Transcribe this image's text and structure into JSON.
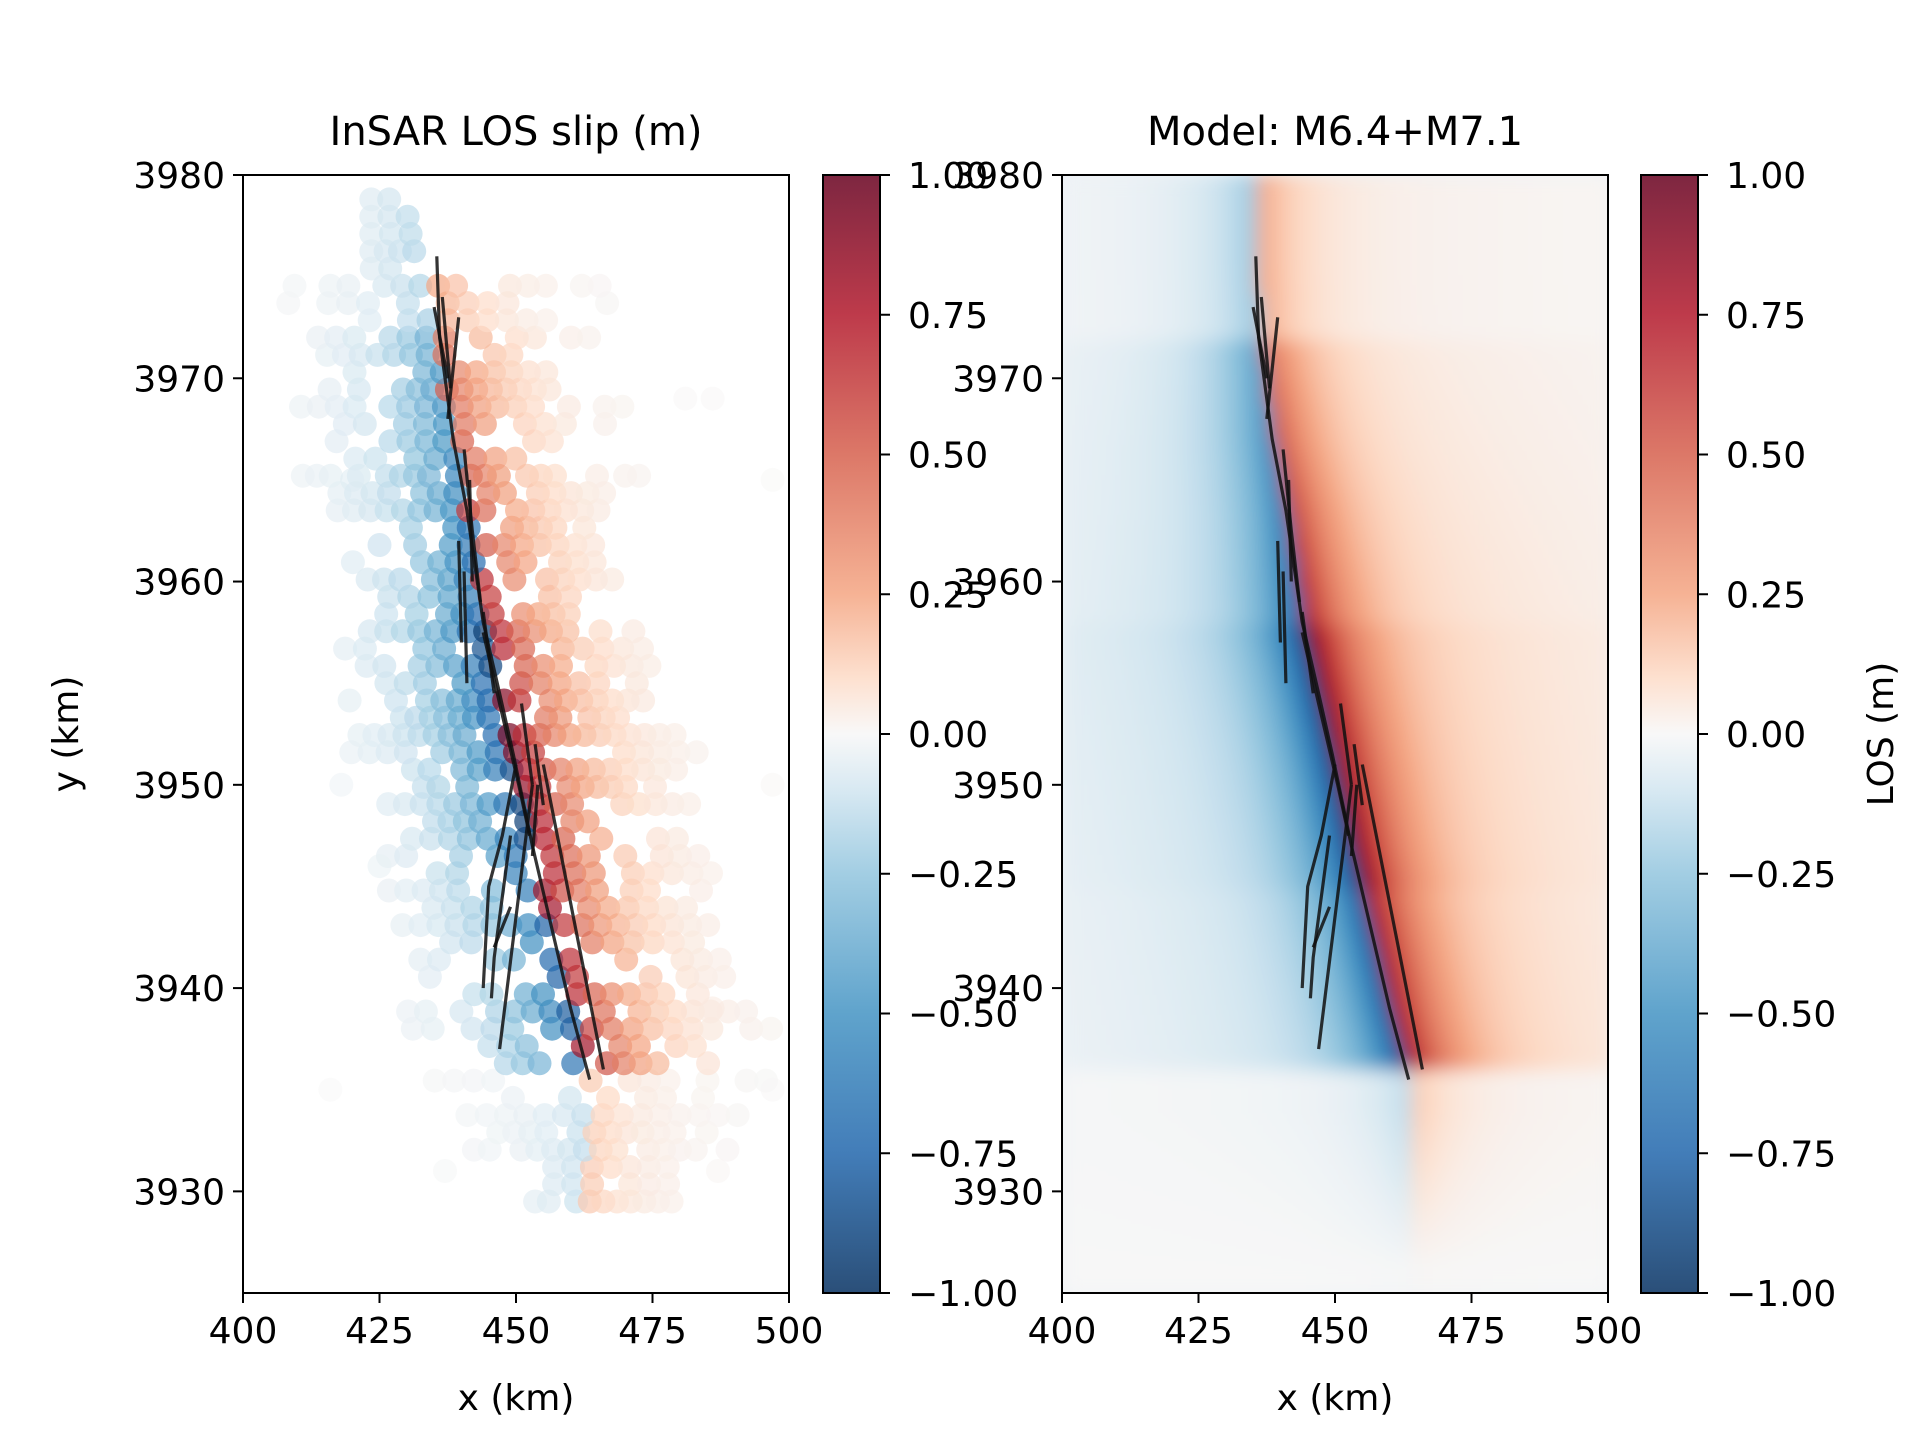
{
  "chart_data": [
    {
      "type": "scatter",
      "title": "InSAR LOS slip (m)",
      "xlabel": "x (km)",
      "ylabel": "y (km)",
      "xlim": [
        400,
        500
      ],
      "ylim": [
        3925,
        3980
      ],
      "xticks": [
        "400",
        "425",
        "450",
        "475",
        "500"
      ],
      "yticks": [
        "3930",
        "3940",
        "3950",
        "3960",
        "3970",
        "3980"
      ],
      "colorbar": {
        "label": "",
        "range": [
          -1.0,
          1.0
        ],
        "ticks": [
          "−1.00",
          "−0.75",
          "−0.50",
          "−0.25",
          "0.00",
          "0.25",
          "0.50",
          "0.75",
          "1.00"
        ],
        "colormap": "RdBu_r"
      },
      "overlap_text": {
        "top": "1.00",
        "top_right": "3980",
        "t3960": "3960"
      }
    },
    {
      "type": "heatmap",
      "title": "Model: M6.4+M7.1",
      "xlabel": "x (km)",
      "ylabel": "",
      "xlim": [
        400,
        500
      ],
      "ylim": [
        3925,
        3980
      ],
      "xticks": [
        "400",
        "425",
        "450",
        "475",
        "500"
      ],
      "yticks": [
        "3930",
        "3940",
        "3950",
        "3960",
        "3970",
        "3980"
      ],
      "colorbar": {
        "label": "LOS (m)",
        "range": [
          -1.0,
          1.0
        ],
        "ticks": [
          "−1.00",
          "−0.75",
          "−0.50",
          "−0.25",
          "0.00",
          "0.25",
          "0.50",
          "0.75",
          "1.00"
        ],
        "colormap": "RdBu_r"
      }
    }
  ],
  "faults": [
    [
      [
        435.5,
        3976.0
      ],
      [
        436.0,
        3972.0
      ],
      [
        438.5,
        3967.0
      ],
      [
        441.0,
        3963.5
      ],
      [
        444.0,
        3958.0
      ],
      [
        447.0,
        3954.5
      ],
      [
        449.5,
        3951.5
      ],
      [
        453.0,
        3947.0
      ],
      [
        456.5,
        3943.0
      ],
      [
        460.0,
        3939.0
      ],
      [
        463.5,
        3935.5
      ]
    ],
    [
      [
        435.0,
        3973.5
      ],
      [
        437.5,
        3970.0
      ]
    ],
    [
      [
        436.5,
        3974.0
      ],
      [
        438.0,
        3969.5
      ]
    ],
    [
      [
        439.5,
        3973.0
      ],
      [
        437.5,
        3968.0
      ]
    ],
    [
      [
        440.5,
        3966.5
      ],
      [
        442.0,
        3962.5
      ],
      [
        443.5,
        3959.0
      ]
    ],
    [
      [
        441.5,
        3965.0
      ],
      [
        442.0,
        3960.0
      ]
    ],
    [
      [
        444.0,
        3957.5
      ],
      [
        447.0,
        3954.0
      ],
      [
        450.5,
        3950.0
      ],
      [
        452.5,
        3947.5
      ]
    ],
    [
      [
        451.0,
        3954.0
      ],
      [
        453.0,
        3950.0
      ]
    ],
    [
      [
        453.5,
        3952.0
      ],
      [
        455.0,
        3949.0
      ]
    ],
    [
      [
        454.0,
        3950.0
      ],
      [
        453.0,
        3946.5
      ]
    ],
    [
      [
        450.0,
        3951.0
      ],
      [
        447.5,
        3947.5
      ],
      [
        445.0,
        3945.0
      ],
      [
        444.0,
        3940.0
      ]
    ],
    [
      [
        449.0,
        3947.5
      ],
      [
        446.0,
        3941.5
      ],
      [
        445.5,
        3939.5
      ]
    ],
    [
      [
        446.0,
        3942.0
      ],
      [
        449.0,
        3944.0
      ]
    ],
    [
      [
        447.0,
        3937.0
      ],
      [
        453.0,
        3950.0
      ]
    ],
    [
      [
        455.0,
        3951.0
      ],
      [
        466.0,
        3936.0
      ]
    ],
    [
      [
        440.5,
        3960.5
      ],
      [
        441.0,
        3955.0
      ]
    ],
    [
      [
        439.5,
        3962.0
      ],
      [
        440.0,
        3957.0
      ]
    ],
    [
      [
        444.0,
        3958.5
      ],
      [
        446.0,
        3954.5
      ]
    ]
  ]
}
